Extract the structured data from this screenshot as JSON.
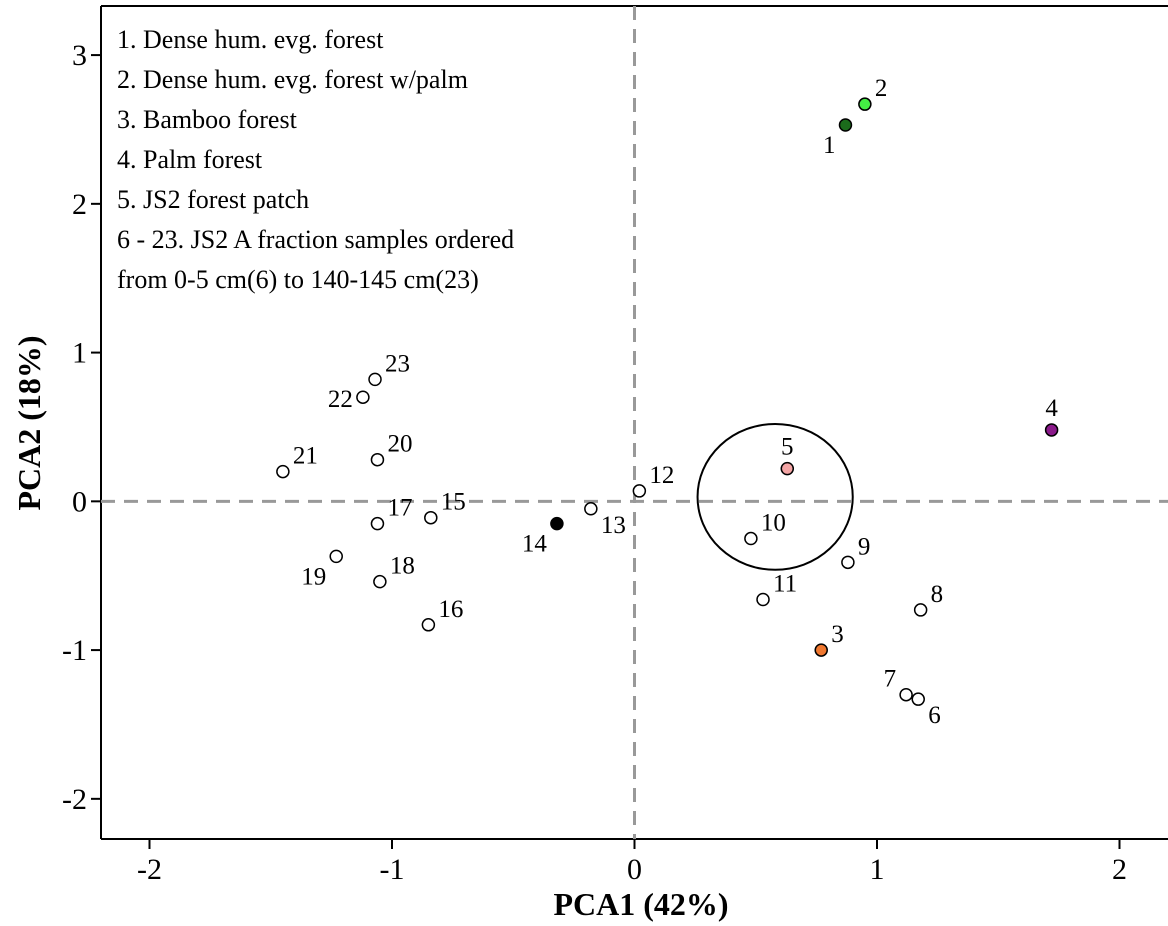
{
  "chart_data": {
    "type": "scatter",
    "xlabel": "PCA1 (42%)",
    "ylabel": "PCA2 (18%)",
    "xlim": [
      -2.2,
      2.2
    ],
    "ylim": [
      -2.27,
      3.33
    ],
    "x_ticks": [
      -2,
      -1,
      0,
      1,
      2
    ],
    "x_tick_labels": [
      "-2",
      "-1",
      "0",
      "1",
      "2"
    ],
    "y_ticks": [
      -2,
      -1,
      0,
      1,
      2,
      3
    ],
    "y_tick_labels": [
      "-2",
      "-1",
      "0",
      "1",
      "2",
      "3"
    ],
    "reference_lines": {
      "x": 0,
      "y": 0,
      "style": "dashed",
      "color": "#999999"
    },
    "legend_placement": "top-left",
    "legend_lines": [
      "1. Dense hum. evg. forest",
      "2. Dense hum. evg. forest w/palm",
      "3. Bamboo forest",
      "4. Palm forest",
      "5. JS2 forest patch",
      "6 - 23. JS2 A fraction samples ordered",
      "from 0-5 cm(6) to 140-145 cm(23)"
    ],
    "highlight_circle": {
      "center": [
        0.58,
        0.03
      ],
      "radius_x": 0.32,
      "radius_y": 0.49
    },
    "points": [
      {
        "label": "1",
        "x": 0.87,
        "y": 2.53,
        "fill": "#1b6b1b",
        "label_side": "bl"
      },
      {
        "label": "2",
        "x": 0.95,
        "y": 2.67,
        "fill": "#44ee44",
        "label_side": "tr"
      },
      {
        "label": "3",
        "x": 0.77,
        "y": -1.0,
        "fill": "#f07830",
        "label_side": "tr"
      },
      {
        "label": "4",
        "x": 1.72,
        "y": 0.48,
        "fill": "#8b1a8b",
        "label_side": "t"
      },
      {
        "label": "5",
        "x": 0.63,
        "y": 0.22,
        "fill": "#f4a5a5",
        "label_side": "t"
      },
      {
        "label": "6",
        "x": 1.17,
        "y": -1.33,
        "fill": "#ffffff",
        "label_side": "br"
      },
      {
        "label": "7",
        "x": 1.12,
        "y": -1.3,
        "fill": "#ffffff",
        "label_side": "tl"
      },
      {
        "label": "8",
        "x": 1.18,
        "y": -0.73,
        "fill": "#ffffff",
        "label_side": "tr"
      },
      {
        "label": "9",
        "x": 0.88,
        "y": -0.41,
        "fill": "#ffffff",
        "label_side": "tr"
      },
      {
        "label": "10",
        "x": 0.48,
        "y": -0.25,
        "fill": "#ffffff",
        "label_side": "tr"
      },
      {
        "label": "11",
        "x": 0.53,
        "y": -0.66,
        "fill": "#ffffff",
        "label_side": "tr"
      },
      {
        "label": "12",
        "x": 0.02,
        "y": 0.07,
        "fill": "#ffffff",
        "label_side": "tr"
      },
      {
        "label": "13",
        "x": -0.18,
        "y": -0.05,
        "fill": "#ffffff",
        "label_side": "br"
      },
      {
        "label": "14",
        "x": -0.32,
        "y": -0.15,
        "fill": "#000000",
        "label_side": "bl"
      },
      {
        "label": "15",
        "x": -0.84,
        "y": -0.11,
        "fill": "#ffffff",
        "label_side": "tr"
      },
      {
        "label": "16",
        "x": -0.85,
        "y": -0.83,
        "fill": "#ffffff",
        "label_side": "tr"
      },
      {
        "label": "17",
        "x": -1.06,
        "y": -0.15,
        "fill": "#ffffff",
        "label_side": "tr"
      },
      {
        "label": "18",
        "x": -1.05,
        "y": -0.54,
        "fill": "#ffffff",
        "label_side": "tr"
      },
      {
        "label": "19",
        "x": -1.23,
        "y": -0.37,
        "fill": "#ffffff",
        "label_side": "bl"
      },
      {
        "label": "20",
        "x": -1.06,
        "y": 0.28,
        "fill": "#ffffff",
        "label_side": "tr"
      },
      {
        "label": "21",
        "x": -1.45,
        "y": 0.2,
        "fill": "#ffffff",
        "label_side": "tr"
      },
      {
        "label": "22",
        "x": -1.12,
        "y": 0.7,
        "fill": "#ffffff",
        "label_side": "l"
      },
      {
        "label": "23",
        "x": -1.07,
        "y": 0.82,
        "fill": "#ffffff",
        "label_side": "tr"
      }
    ]
  }
}
